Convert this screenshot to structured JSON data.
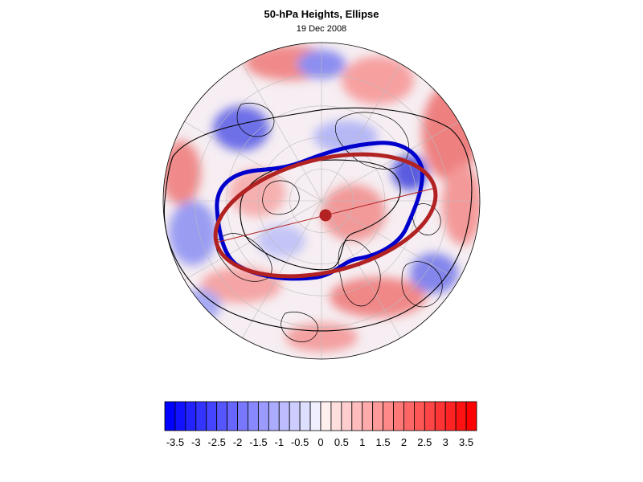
{
  "header": {
    "title": "50-hPa Heights, Ellipse",
    "date": "19 Dec 2008"
  },
  "colorbar": {
    "tick_labels": [
      "-3.5",
      "-3",
      "-2.5",
      "-2",
      "-1.5",
      "-1",
      "-0.5",
      "0",
      "0.5",
      "1",
      "1.5",
      "2",
      "2.5",
      "3",
      "3.5"
    ],
    "min": -3.75,
    "max": 3.75,
    "step": 0.25,
    "negative_color": "#0000ff",
    "positive_color": "#ff0000"
  },
  "colors": {
    "observed_contour": "#0000cc",
    "fitted_ellipse": "#b22222",
    "coastline": "#000000",
    "grid": "#bbbbbb"
  }
}
